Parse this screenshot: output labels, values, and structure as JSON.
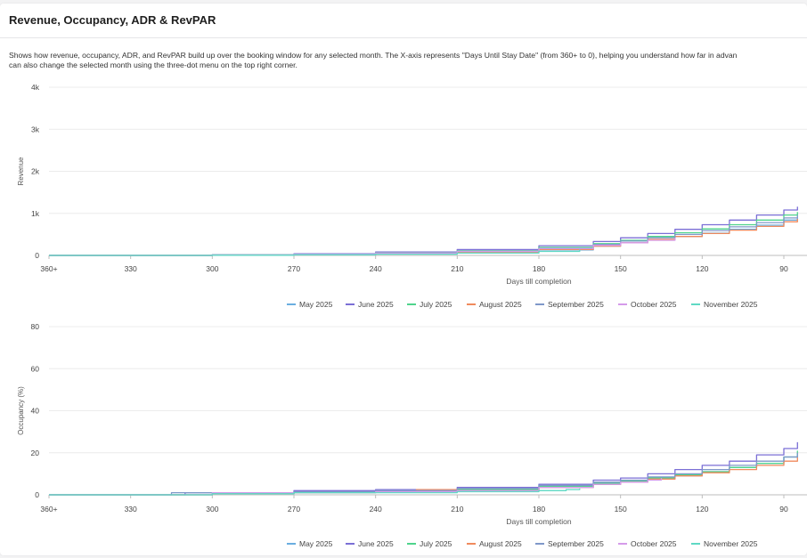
{
  "card": {
    "title": "Revenue, Occupancy, ADR & RevPAR",
    "description_line1": "Shows how revenue, occupancy, ADR, and RevPAR build up over the booking window for any selected month. The X-axis represents \"Days Until Stay Date\" (from 360+ to 0), helping you understand how far in advan",
    "description_line2": "can also change the selected month using the three-dot menu on the top right corner."
  },
  "colors": {
    "May 2025": "#6aaee0",
    "June 2025": "#7b6fd6",
    "July 2025": "#4fd48c",
    "August 2025": "#f08a5d",
    "September 2025": "#7f98c9",
    "October 2025": "#d59bea",
    "November 2025": "#5fd9c4"
  },
  "chart_data": [
    {
      "type": "line",
      "ylabel": "Revenue",
      "xlabel": "Days till completion",
      "x_ticks": [
        "360+",
        "330",
        "300",
        "270",
        "240",
        "210",
        "180",
        "150",
        "120",
        "90"
      ],
      "x_tick_values": [
        360,
        330,
        300,
        270,
        240,
        210,
        180,
        150,
        120,
        90
      ],
      "y_ticks": [
        "0",
        "1k",
        "2k",
        "3k",
        "4k"
      ],
      "y_tick_values": [
        0,
        1000,
        2000,
        3000,
        4000
      ],
      "ylim": [
        0,
        4000
      ],
      "grid": true,
      "legend_position": "bottom",
      "series": [
        {
          "name": "May 2025",
          "x": [
            360,
            300,
            270,
            240,
            210,
            180,
            160,
            150,
            140,
            130,
            120,
            110,
            100,
            90,
            85
          ],
          "y": [
            0,
            10,
            25,
            50,
            80,
            130,
            220,
            300,
            370,
            450,
            530,
            620,
            720,
            840,
            900
          ]
        },
        {
          "name": "June 2025",
          "x": [
            360,
            300,
            270,
            240,
            210,
            180,
            160,
            150,
            140,
            130,
            120,
            110,
            100,
            90,
            85
          ],
          "y": [
            0,
            15,
            40,
            80,
            140,
            230,
            330,
            420,
            520,
            620,
            730,
            840,
            960,
            1080,
            1160
          ]
        },
        {
          "name": "July 2025",
          "x": [
            360,
            300,
            270,
            240,
            210,
            180,
            160,
            150,
            140,
            130,
            120,
            110,
            100,
            90,
            85
          ],
          "y": [
            0,
            12,
            30,
            65,
            110,
            190,
            280,
            360,
            450,
            540,
            630,
            730,
            840,
            960,
            1030
          ]
        },
        {
          "name": "August 2025",
          "x": [
            360,
            300,
            270,
            240,
            210,
            180,
            160,
            150,
            140,
            130,
            120,
            110,
            100,
            90,
            85
          ],
          "y": [
            0,
            8,
            20,
            45,
            80,
            140,
            220,
            300,
            380,
            450,
            520,
            600,
            690,
            800,
            870
          ]
        },
        {
          "name": "September 2025",
          "x": [
            360,
            300,
            270,
            240,
            210,
            180,
            160,
            150,
            140,
            130,
            120,
            110,
            100,
            90,
            85
          ],
          "y": [
            0,
            10,
            28,
            60,
            100,
            170,
            260,
            340,
            420,
            500,
            590,
            680,
            780,
            890,
            960
          ]
        },
        {
          "name": "October 2025",
          "x": [
            360,
            300,
            270,
            240,
            210,
            180,
            160,
            150,
            140,
            130
          ],
          "y": [
            0,
            10,
            25,
            55,
            95,
            160,
            240,
            300,
            360,
            420
          ]
        },
        {
          "name": "November 2025",
          "x": [
            360,
            300,
            270,
            240,
            210,
            180,
            165
          ],
          "y": [
            0,
            5,
            15,
            30,
            55,
            95,
            140
          ]
        }
      ]
    },
    {
      "type": "line",
      "ylabel": "Occupancy (%)",
      "xlabel": "Days till completion",
      "x_ticks": [
        "360+",
        "330",
        "300",
        "270",
        "240",
        "210",
        "180",
        "150",
        "120",
        "90"
      ],
      "x_tick_values": [
        360,
        330,
        300,
        270,
        240,
        210,
        180,
        150,
        120,
        90
      ],
      "y_ticks": [
        "0",
        "20",
        "40",
        "60",
        "80"
      ],
      "y_tick_values": [
        0,
        20,
        40,
        60,
        80
      ],
      "ylim": [
        0,
        80
      ],
      "grid": true,
      "legend_position": "bottom",
      "series": [
        {
          "name": "May 2025",
          "x": [
            360,
            300,
            270,
            240,
            210,
            180,
            160,
            150,
            140,
            130,
            120,
            110,
            100,
            90,
            85
          ],
          "y": [
            0,
            0.5,
            1,
            1.5,
            2,
            3.5,
            5,
            6,
            7.5,
            9,
            11,
            13,
            15,
            18,
            20
          ]
        },
        {
          "name": "June 2025",
          "x": [
            360,
            310,
            300,
            270,
            240,
            210,
            180,
            160,
            150,
            140,
            130,
            120,
            110,
            100,
            90,
            85
          ],
          "y": [
            0,
            1,
            1,
            2,
            2.5,
            3.5,
            5,
            7,
            8,
            10,
            12,
            14,
            16,
            19,
            22,
            25
          ]
        },
        {
          "name": "July 2025",
          "x": [
            360,
            300,
            270,
            240,
            210,
            180,
            160,
            150,
            140,
            130,
            120,
            110,
            100,
            90,
            85
          ],
          "y": [
            0,
            0.5,
            1,
            1.5,
            2.5,
            4,
            5.5,
            6.5,
            8,
            9.5,
            11,
            13,
            15,
            18,
            21
          ]
        },
        {
          "name": "August 2025",
          "x": [
            360,
            300,
            270,
            240,
            225,
            210,
            180,
            160,
            150,
            140,
            130,
            120,
            110,
            100,
            90,
            85
          ],
          "y": [
            0,
            0.5,
            1,
            1.5,
            2.5,
            2,
            3.5,
            5,
            6,
            7.5,
            9,
            10.5,
            12,
            14,
            16,
            18
          ]
        },
        {
          "name": "September 2025",
          "x": [
            360,
            315,
            300,
            270,
            240,
            210,
            180,
            160,
            150,
            140,
            130,
            120,
            110,
            100,
            90,
            85
          ],
          "y": [
            0,
            1,
            0.5,
            1.5,
            2,
            3,
            4.5,
            6,
            7,
            8.5,
            10,
            12,
            14,
            16,
            18,
            20
          ]
        },
        {
          "name": "October 2025",
          "x": [
            360,
            300,
            270,
            240,
            210,
            180,
            160,
            150,
            140,
            135
          ],
          "y": [
            0,
            1,
            1,
            1.5,
            2,
            3.5,
            5,
            6,
            7,
            8
          ]
        },
        {
          "name": "November 2025",
          "x": [
            360,
            300,
            270,
            240,
            210,
            180,
            170,
            165
          ],
          "y": [
            0,
            0.5,
            1,
            1,
            1.5,
            2,
            2.5,
            3
          ]
        }
      ]
    }
  ]
}
